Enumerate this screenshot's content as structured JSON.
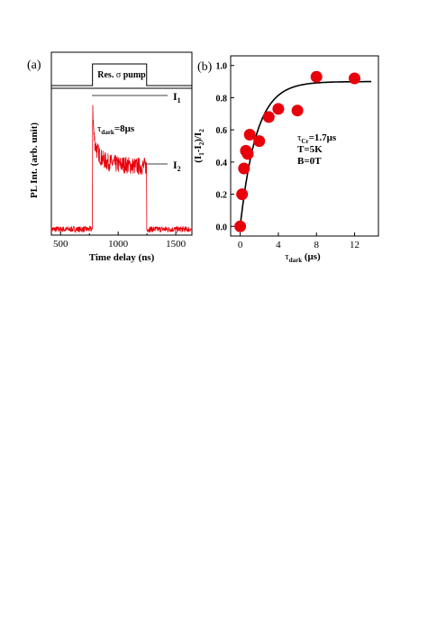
{
  "chart_data": [
    {
      "panel_label": "(a)",
      "type": "line",
      "pump_label_prefix": "Res.",
      "pump_label_symbol": "σ",
      "pump_label_suffix": "pump",
      "pump_on_ns": 777,
      "pump_off_ns": 1247,
      "xlabel": "Time delay (ns)",
      "ylabel": "PL Int. (arb. unit)",
      "xlim": [
        420,
        1640
      ],
      "xticks": [
        500,
        1000,
        1500
      ],
      "annotation_tau": {
        "base": "τ",
        "sub": "dark",
        "rest": "=8μs"
      },
      "marker_I1": {
        "base": "I",
        "sub": "1"
      },
      "marker_I2": {
        "base": "I",
        "sub": "2"
      },
      "series": [
        {
          "color": "#e8000b",
          "x": [
            420,
            776,
            777,
            779,
            783,
            790,
            800,
            815,
            835,
            860,
            900,
            950,
            1000,
            1050,
            1100,
            1150,
            1200,
            1246,
            1248,
            1640
          ],
          "y": [
            0.04,
            0.04,
            0.6,
            0.93,
            0.78,
            0.68,
            0.62,
            0.58,
            0.55,
            0.52,
            0.5,
            0.49,
            0.48,
            0.48,
            0.475,
            0.47,
            0.47,
            0.47,
            0.04,
            0.04
          ]
        }
      ]
    },
    {
      "panel_label": "(b)",
      "type": "scatter",
      "xlabel": {
        "base": "τ",
        "sub": "dark",
        "rest": " (μs)"
      },
      "ylabel": "(I1-I2)/I2",
      "xlim": [
        -1,
        14.5
      ],
      "ylim": [
        -0.06,
        1.06
      ],
      "xticks": [
        0,
        4,
        8,
        12
      ],
      "yticks": [
        0.0,
        0.2,
        0.4,
        0.6,
        0.8,
        1.0
      ],
      "ytick_labels": [
        "0.0",
        "0.2",
        "0.4",
        "0.6",
        "0.8",
        "1.0"
      ],
      "points": {
        "color": "#e8000b",
        "x": [
          0.0,
          0.2,
          0.4,
          0.6,
          0.8,
          1.0,
          2.0,
          3.0,
          4.0,
          6.0,
          8.0,
          12.0
        ],
        "y": [
          0.0,
          0.2,
          0.36,
          0.47,
          0.45,
          0.57,
          0.53,
          0.68,
          0.73,
          0.72,
          0.93,
          0.92
        ]
      },
      "fit": {
        "amplitude": 0.9,
        "tau_us": 1.7,
        "x_max": 13.8
      },
      "annotations": {
        "tau": {
          "base": "τ",
          "sub": "Cr",
          "rest": "=1.7μs"
        },
        "temperature": "T=5K",
        "field": "B=0T"
      }
    }
  ]
}
